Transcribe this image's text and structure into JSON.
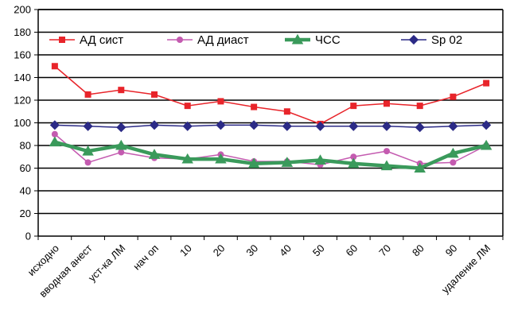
{
  "chart_data": {
    "type": "line",
    "title": "",
    "xlabel": "",
    "ylabel": "",
    "ylim": [
      0,
      200
    ],
    "yticks": [
      0,
      20,
      40,
      60,
      80,
      100,
      120,
      140,
      160,
      180,
      200
    ],
    "grid": true,
    "legend_position": "top",
    "categories": [
      "исходно",
      "вводная анест",
      "уст-ка ЛМ",
      "нач оп",
      "10",
      "20",
      "30",
      "40",
      "50",
      "60",
      "70",
      "80",
      "90",
      "удаление ЛМ"
    ],
    "series": [
      {
        "name": "АД сист",
        "color": "#e8242a",
        "marker": "square",
        "values": [
          150,
          125,
          129,
          125,
          115,
          119,
          114,
          110,
          99,
          115,
          117,
          115,
          123,
          135
        ]
      },
      {
        "name": "АД диаст",
        "color": "#c45bb0",
        "marker": "circle",
        "values": [
          90,
          65,
          74,
          69,
          68,
          72,
          66,
          66,
          63,
          70,
          75,
          64,
          65,
          80
        ]
      },
      {
        "name": "ЧСС",
        "color": "#3a9a5b",
        "marker": "triangle",
        "values": [
          83,
          75,
          80,
          72,
          68,
          68,
          64,
          65,
          67,
          64,
          62,
          60,
          73,
          80
        ]
      },
      {
        "name": "Sp 02",
        "color": "#2b2a86",
        "marker": "diamond",
        "values": [
          98,
          97,
          96,
          98,
          97,
          98,
          98,
          97,
          97,
          97,
          97,
          96,
          97,
          98
        ]
      }
    ]
  }
}
